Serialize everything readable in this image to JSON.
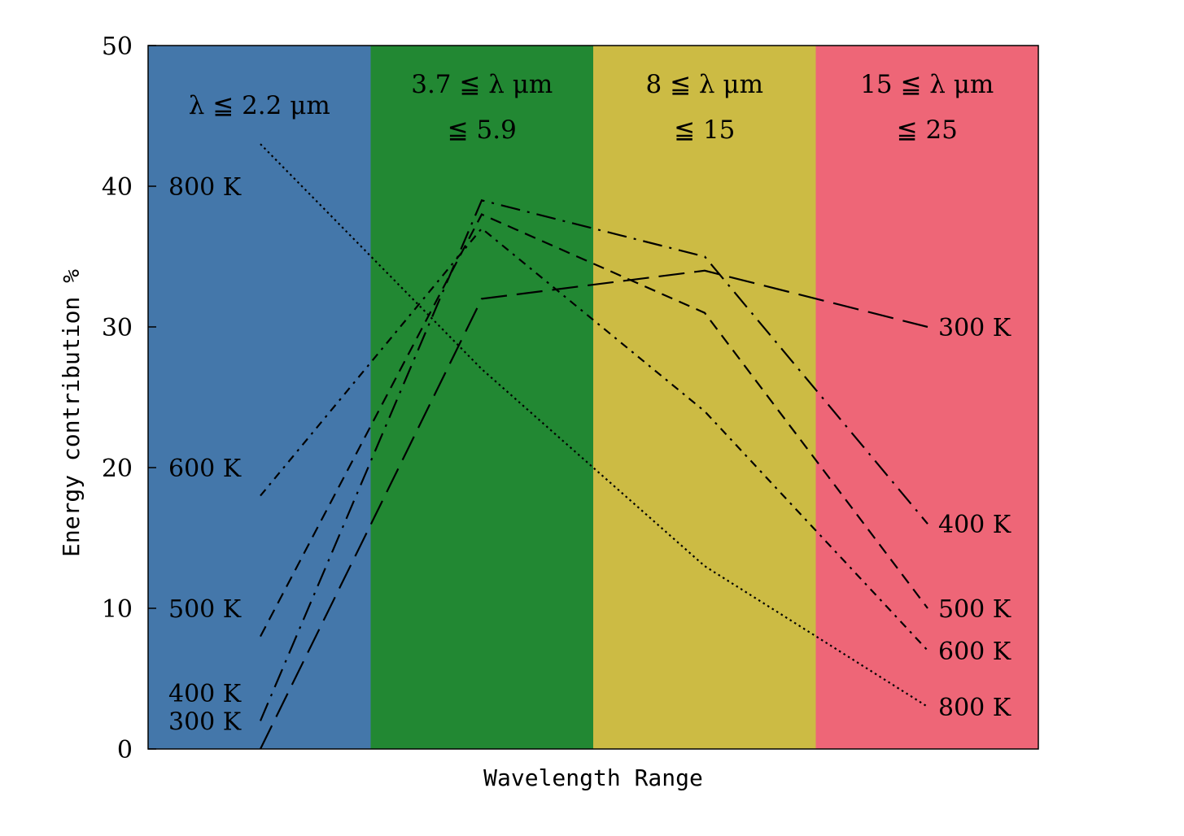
{
  "chart_data": {
    "type": "line",
    "xlabel": "Wavelength Range",
    "ylabel": "Energy contribution %",
    "ylim": [
      0,
      50
    ],
    "yticks": [
      0,
      10,
      20,
      30,
      40,
      50
    ],
    "grid": false,
    "bands": [
      {
        "lines": [
          "λ ≦ 2.2 μm"
        ],
        "color": "#4477aa"
      },
      {
        "lines": [
          "3.7 ≦ λ μm",
          "≦ 5.9"
        ],
        "color": "#228833"
      },
      {
        "lines": [
          "8 ≦ λ μm",
          "≦ 15"
        ],
        "color": "#ccbb44"
      },
      {
        "lines": [
          "15 ≦ λ μm",
          "≦ 25"
        ],
        "color": "#ee6677"
      }
    ],
    "series": [
      {
        "name": "300 K",
        "dash": "long-dash",
        "values": [
          0,
          32,
          34,
          30
        ]
      },
      {
        "name": "400 K",
        "dash": "long-dash-dot",
        "values": [
          2,
          39,
          35,
          16
        ]
      },
      {
        "name": "500 K",
        "dash": "dash",
        "values": [
          8,
          38,
          31,
          10
        ]
      },
      {
        "name": "600 K",
        "dash": "dash-dot",
        "values": [
          18,
          37,
          24,
          7
        ]
      },
      {
        "name": "800 K",
        "dash": "dot",
        "values": [
          43,
          27,
          13,
          3
        ]
      }
    ],
    "left_labels": [
      {
        "text": "800 K",
        "y": 40
      },
      {
        "text": "600 K",
        "y": 20
      },
      {
        "text": "500 K",
        "y": 10
      },
      {
        "text": "400 K",
        "y": 4
      },
      {
        "text": "300 K",
        "y": 2
      }
    ],
    "right_labels": [
      {
        "text": "300 K",
        "y": 30
      },
      {
        "text": "400 K",
        "y": 16
      },
      {
        "text": "500 K",
        "y": 10
      },
      {
        "text": "600 K",
        "y": 7
      },
      {
        "text": "800 K",
        "y": 3
      }
    ]
  }
}
